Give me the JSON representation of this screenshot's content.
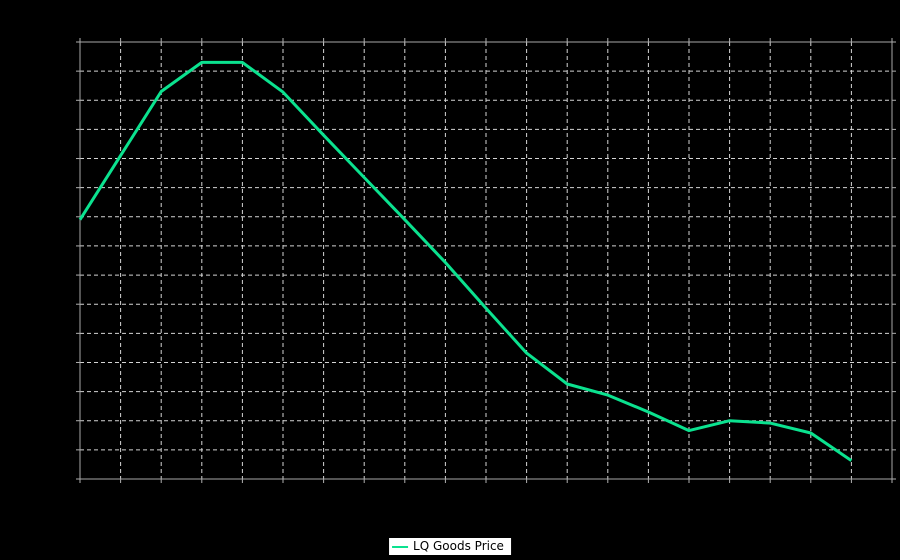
{
  "window": {
    "background": "#000000"
  },
  "legend": {
    "label": "LQ Goods Price",
    "box_background": "#ffffff",
    "text_color": "#000000"
  },
  "chart_data": {
    "type": "line",
    "title": "",
    "xlabel": "",
    "ylabel": "",
    "tick_labels_visible": false,
    "grid": true,
    "grid_color": "#d4d4d4",
    "border_color": "#a8a8a8",
    "background": "#000000",
    "legend_position": "bottom-center",
    "xlim": [
      0,
      20
    ],
    "ylim": [
      0,
      15
    ],
    "x_tick_step": 1,
    "y_tick_step": 1,
    "x": [
      0,
      1,
      2,
      3,
      4,
      5,
      6,
      7,
      8,
      9,
      10,
      11,
      12,
      13,
      14,
      15,
      16,
      17,
      18,
      19
    ],
    "series": [
      {
        "name": "LQ Goods Price",
        "color": "#0be28f",
        "values": [
          8.9,
          11.1,
          13.3,
          14.3,
          14.3,
          13.28,
          11.8,
          10.35,
          8.9,
          7.43,
          5.86,
          4.32,
          3.26,
          2.88,
          2.3,
          1.66,
          2.0,
          1.92,
          1.58,
          0.63
        ]
      }
    ]
  }
}
